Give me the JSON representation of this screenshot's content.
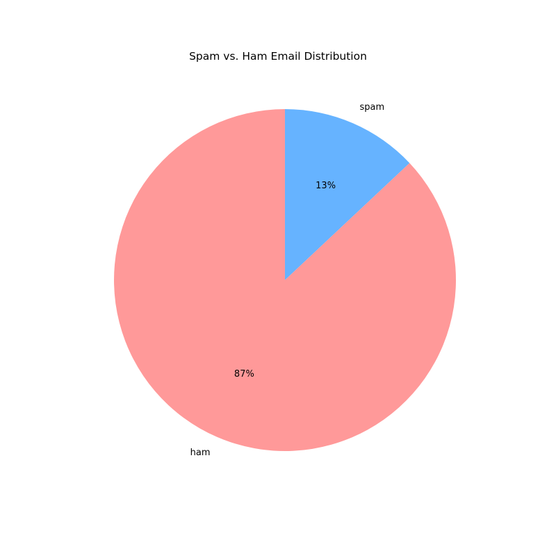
{
  "chart_data": {
    "type": "pie",
    "title": "Spam vs. Ham Email Distribution",
    "slices": [
      {
        "label": "spam",
        "value": 13,
        "percent_label": "13%",
        "color": "#66b3ff"
      },
      {
        "label": "ham",
        "value": 87,
        "percent_label": "87%",
        "color": "#ff9999"
      }
    ],
    "start_angle_deg": 90,
    "direction": "clockwise",
    "legend": "none"
  }
}
